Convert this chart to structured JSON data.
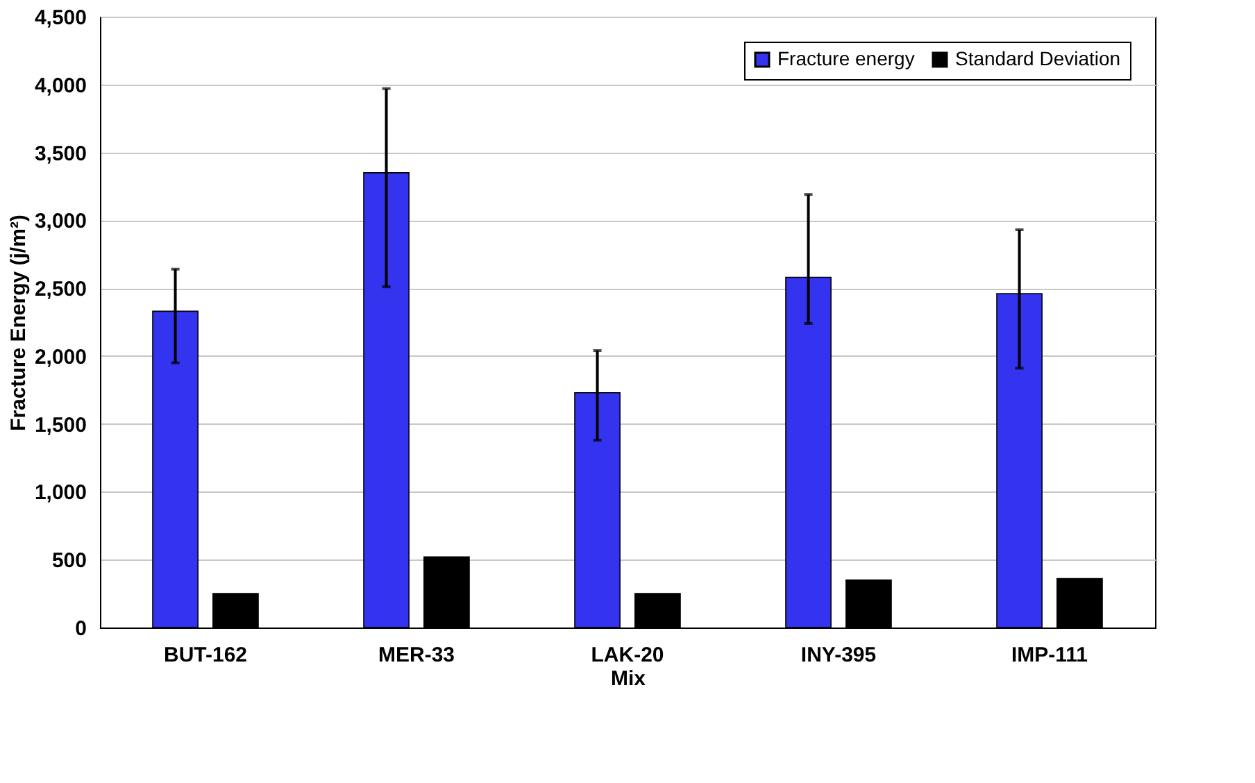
{
  "chart_data": {
    "type": "bar",
    "xlabel": "Mix",
    "ylabel": "Fracture Energy (j/m²)",
    "categories": [
      "BUT-162",
      "MER-33",
      "LAK-20",
      "INY-395",
      "IMP-111"
    ],
    "series": [
      {
        "name": "Fracture energy",
        "color": "#3333f0",
        "values": [
          2330,
          3350,
          1730,
          2580,
          2460
        ],
        "errors": [
          [
            1950,
            2640
          ],
          [
            2510,
            3970
          ],
          [
            1380,
            2040
          ],
          [
            2240,
            3190
          ],
          [
            1910,
            2930
          ]
        ]
      },
      {
        "name": "Standard Deviation",
        "color": "#000000",
        "values": [
          250,
          520,
          250,
          350,
          360
        ]
      }
    ],
    "ylim": [
      0,
      4500
    ],
    "yticks": [
      0,
      500,
      {
        "value": 1000,
        "label": "1,000"
      },
      {
        "value": 1500,
        "label": "1,500"
      },
      {
        "value": 2000,
        "label": "2,000"
      },
      {
        "value": 2500,
        "label": "2,500"
      },
      {
        "value": 3000,
        "label": "3,000"
      },
      {
        "value": 3500,
        "label": "3,500"
      },
      {
        "value": 4000,
        "label": "4,000"
      },
      {
        "value": 4500,
        "label": "4,500"
      }
    ],
    "grid": "y",
    "legend": "top right"
  }
}
